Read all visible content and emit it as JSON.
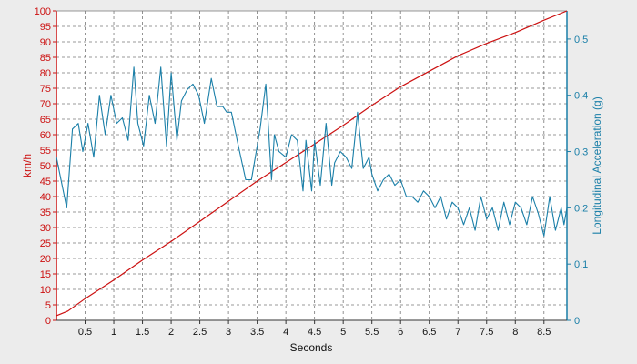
{
  "chart_data": {
    "type": "line",
    "xlabel": "Seconds",
    "ylabel_left": "km/h",
    "ylabel_right": "Longitudinal Acceleration (g)",
    "xlim": [
      0,
      8.9
    ],
    "ylim_left": [
      0,
      100
    ],
    "ylim_right": [
      0,
      0.55
    ],
    "x_ticks": [
      "0.5",
      "1",
      "1.5",
      "2",
      "2.5",
      "3",
      "3.5",
      "4",
      "4.5",
      "5",
      "5.5",
      "6",
      "6.5",
      "7",
      "7.5",
      "8",
      "8.5"
    ],
    "y_left_ticks": [
      "0",
      "5",
      "10",
      "15",
      "20",
      "25",
      "30",
      "35",
      "40",
      "45",
      "50",
      "55",
      "60",
      "65",
      "70",
      "75",
      "80",
      "85",
      "90",
      "95",
      "100"
    ],
    "y_right_ticks": [
      "0",
      "0.1",
      "0.2",
      "0.3",
      "0.4",
      "0.5"
    ],
    "grid": true,
    "colors": {
      "speed": "#cc1111",
      "acceleration": "#1a7fa8",
      "background": "#ececec",
      "plot_background": "#ffffff",
      "grid": "#777777"
    },
    "series": [
      {
        "axis": "left",
        "x": [
          0,
          0.2,
          0.5,
          1.0,
          1.5,
          2.0,
          2.5,
          3.0,
          3.5,
          4.0,
          4.5,
          5.0,
          5.5,
          6.0,
          6.5,
          7.0,
          7.5,
          8.0,
          8.5,
          8.9
        ],
        "values": [
          1.5,
          3,
          7,
          13,
          19.5,
          25.5,
          32,
          38.5,
          45,
          51,
          57,
          63,
          69.5,
          75.5,
          80.5,
          85.5,
          89.5,
          93,
          97,
          100
        ]
      },
      {
        "axis": "right",
        "x": [
          0,
          0.08,
          0.18,
          0.28,
          0.38,
          0.46,
          0.55,
          0.65,
          0.75,
          0.85,
          0.95,
          1.05,
          1.15,
          1.25,
          1.35,
          1.42,
          1.52,
          1.62,
          1.72,
          1.82,
          1.92,
          2.0,
          2.1,
          2.18,
          2.28,
          2.38,
          2.48,
          2.58,
          2.7,
          2.8,
          2.9,
          2.97,
          3.05,
          3.15,
          3.3,
          3.4,
          3.55,
          3.65,
          3.75,
          3.8,
          3.88,
          4.0,
          4.1,
          4.2,
          4.3,
          4.35,
          4.45,
          4.5,
          4.6,
          4.7,
          4.8,
          4.85,
          4.95,
          5.05,
          5.15,
          5.25,
          5.35,
          5.45,
          5.5,
          5.6,
          5.7,
          5.8,
          5.9,
          6.0,
          6.1,
          6.2,
          6.3,
          6.4,
          6.5,
          6.6,
          6.7,
          6.8,
          6.9,
          7.0,
          7.1,
          7.2,
          7.3,
          7.4,
          7.5,
          7.6,
          7.7,
          7.8,
          7.9,
          8.0,
          8.1,
          8.2,
          8.3,
          8.4,
          8.5,
          8.6,
          8.7,
          8.8,
          8.85,
          8.9
        ],
        "values": [
          0.29,
          0.25,
          0.2,
          0.34,
          0.35,
          0.3,
          0.35,
          0.29,
          0.4,
          0.33,
          0.4,
          0.35,
          0.36,
          0.32,
          0.45,
          0.35,
          0.31,
          0.4,
          0.35,
          0.45,
          0.31,
          0.44,
          0.32,
          0.39,
          0.41,
          0.42,
          0.4,
          0.35,
          0.43,
          0.38,
          0.38,
          0.37,
          0.37,
          0.32,
          0.25,
          0.25,
          0.34,
          0.42,
          0.25,
          0.33,
          0.3,
          0.29,
          0.33,
          0.32,
          0.23,
          0.32,
          0.23,
          0.32,
          0.24,
          0.35,
          0.24,
          0.28,
          0.3,
          0.29,
          0.27,
          0.37,
          0.27,
          0.29,
          0.26,
          0.23,
          0.25,
          0.26,
          0.24,
          0.25,
          0.22,
          0.22,
          0.21,
          0.23,
          0.22,
          0.2,
          0.22,
          0.18,
          0.21,
          0.2,
          0.17,
          0.2,
          0.16,
          0.22,
          0.18,
          0.2,
          0.16,
          0.21,
          0.17,
          0.21,
          0.2,
          0.17,
          0.22,
          0.19,
          0.15,
          0.22,
          0.16,
          0.2,
          0.17,
          0.2
        ]
      }
    ]
  }
}
